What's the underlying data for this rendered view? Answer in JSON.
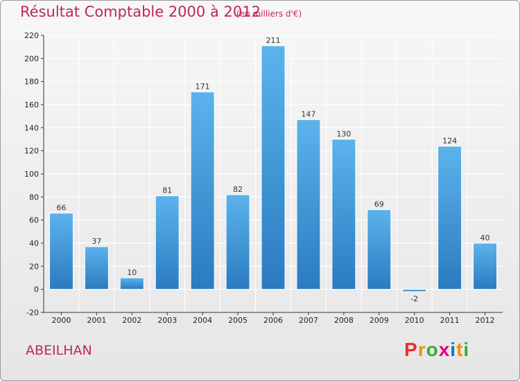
{
  "header": {
    "title": "Résultat Comptable 2000 à 2012",
    "subtitle": "(en milliers d'€)"
  },
  "footer": {
    "commune": "ABEILHAN",
    "logo_letters": [
      "P",
      "r",
      "o",
      "x",
      "i",
      "t",
      "i"
    ],
    "logo_colors": [
      "#e8312f",
      "#f39200",
      "#3aaa35",
      "#e6007e",
      "#1d71b8",
      "#f39200",
      "#3aaa35"
    ]
  },
  "colors": {
    "bar_top": "#5cb3ec",
    "bar_bottom": "#2a7bc0",
    "title": "#c0255f"
  },
  "chart_data": {
    "type": "bar",
    "title": "Résultat Comptable 2000 à 2012",
    "subtitle": "(en milliers d'€)",
    "xlabel": "",
    "ylabel": "",
    "categories": [
      "2000",
      "2001",
      "2002",
      "2003",
      "2004",
      "2005",
      "2006",
      "2007",
      "2008",
      "2009",
      "2010",
      "2011",
      "2012"
    ],
    "values": [
      66,
      37,
      10,
      81,
      171,
      82,
      211,
      147,
      130,
      69,
      -2,
      124,
      40
    ],
    "ylim": [
      -20,
      220
    ],
    "yticks": [
      -20,
      0,
      20,
      40,
      60,
      80,
      100,
      120,
      140,
      160,
      180,
      200,
      220
    ],
    "grid": true
  }
}
